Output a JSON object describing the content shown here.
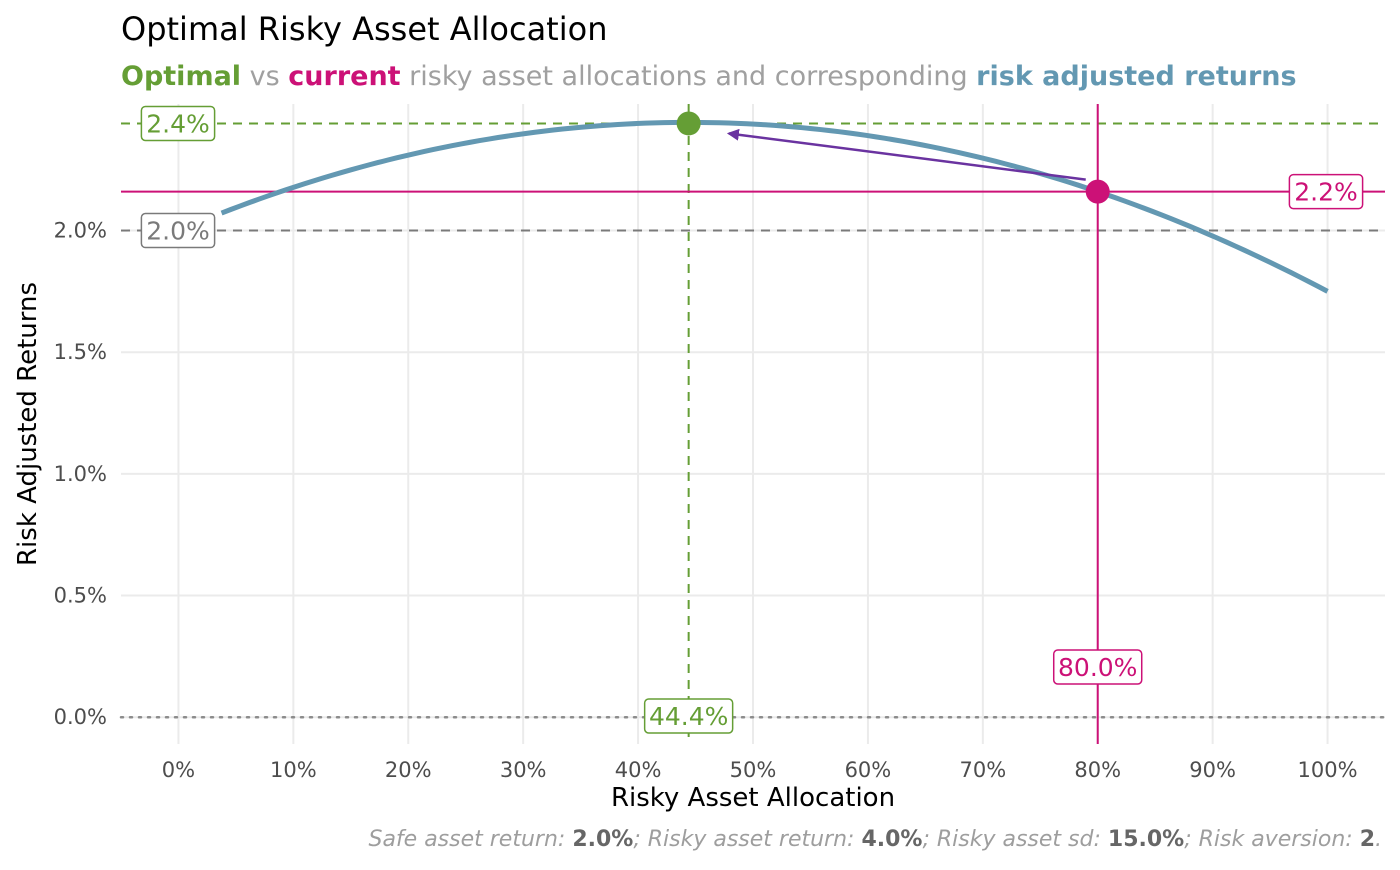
{
  "chart_data": {
    "type": "line",
    "title": "Optimal Risky Asset Allocation",
    "subtitle": {
      "optimal_word": "Optimal",
      "vs_word": " vs ",
      "current_word": "current",
      "middle_text": " risky asset allocations and corresponding ",
      "returns_word": "risk adjusted returns"
    },
    "xlabel": "Risky Asset Allocation",
    "ylabel": "Risk Adjusted Returns",
    "xlim": [
      -0.05,
      1.05
    ],
    "ylim": [
      -0.0011,
      0.0252
    ],
    "x_ticks": [
      {
        "value": 0.0,
        "label": "0%"
      },
      {
        "value": 0.1,
        "label": "10%"
      },
      {
        "value": 0.2,
        "label": "20%"
      },
      {
        "value": 0.3,
        "label": "30%"
      },
      {
        "value": 0.4,
        "label": "40%"
      },
      {
        "value": 0.5,
        "label": "50%"
      },
      {
        "value": 0.6,
        "label": "60%"
      },
      {
        "value": 0.7,
        "label": "70%"
      },
      {
        "value": 0.8,
        "label": "80%"
      },
      {
        "value": 0.9,
        "label": "90%"
      },
      {
        "value": 1.0,
        "label": "100%"
      }
    ],
    "y_ticks": [
      {
        "value": 0.0,
        "label": "0.0%"
      },
      {
        "value": 0.005,
        "label": "0.5%"
      },
      {
        "value": 0.01,
        "label": "1.0%"
      },
      {
        "value": 0.015,
        "label": "1.5%"
      },
      {
        "value": 0.02,
        "label": "2.0%"
      }
    ],
    "grid": true,
    "curve": {
      "x_start": 0.0375,
      "x_end": 1.0,
      "safe_return": 0.02,
      "risky_return": 0.04,
      "risky_sd": 0.15,
      "risk_aversion": 2
    },
    "optimal": {
      "x": 0.444,
      "y": 0.0244,
      "x_label": "44.4%",
      "y_label": "2.4%"
    },
    "current": {
      "x": 0.8,
      "y": 0.0216,
      "x_label": "80.0%",
      "y_label": "2.2%"
    },
    "baseline": {
      "y": 0.02,
      "label": "2.0%"
    },
    "zero_line": {
      "y": 0.0
    },
    "colors": {
      "optimal": "#659e35",
      "current": "#cc1177",
      "curve": "#6398b2",
      "baseline": "#7a7a7a",
      "arrow": "#6a33a0",
      "grid": "#ebebeb",
      "tick_text": "#4d4d4d",
      "subtitle_grey": "#a0a0a0",
      "caption_grey": "#9e9e9e",
      "caption_bold": "#666666"
    }
  },
  "caption": {
    "items": [
      {
        "label": "Safe asset return",
        "value": "2.0%",
        "sep": "; "
      },
      {
        "label": "Risky asset return",
        "value": "4.0%",
        "sep": "; "
      },
      {
        "label": "Risky asset sd",
        "value": "15.0%",
        "sep": "; "
      },
      {
        "label": "Risk aversion",
        "value": "2",
        "sep": "."
      }
    ]
  }
}
